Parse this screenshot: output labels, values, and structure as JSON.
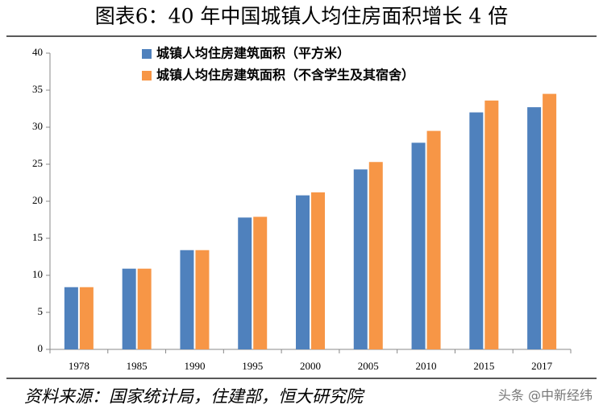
{
  "chart_data": {
    "type": "bar",
    "title": "图表6：40 年中国城镇人均住房面积增长 4 倍",
    "categories": [
      "1978",
      "1985",
      "1990",
      "1995",
      "2000",
      "2005",
      "2010",
      "2015",
      "2017"
    ],
    "series": [
      {
        "name": "城镇人均住房建筑面积（平方米）",
        "color": "#4f81bd",
        "values": [
          8.4,
          10.9,
          13.4,
          17.8,
          20.8,
          24.3,
          27.9,
          32.0,
          32.7
        ]
      },
      {
        "name": "城镇人均住房建筑面积（不含学生及其宿舍）",
        "color": "#f79646",
        "values": [
          8.4,
          10.9,
          13.4,
          17.9,
          21.2,
          25.3,
          29.5,
          33.6,
          34.5
        ]
      }
    ],
    "ylim": [
      0,
      40
    ],
    "yticks": [
      0,
      5,
      10,
      15,
      20,
      25,
      30,
      35,
      40
    ],
    "grid": false,
    "legend": "top-left",
    "source": "资料来源：国家统计局，住建部，恒大研究院",
    "watermark": "头条 @中新经纬"
  }
}
